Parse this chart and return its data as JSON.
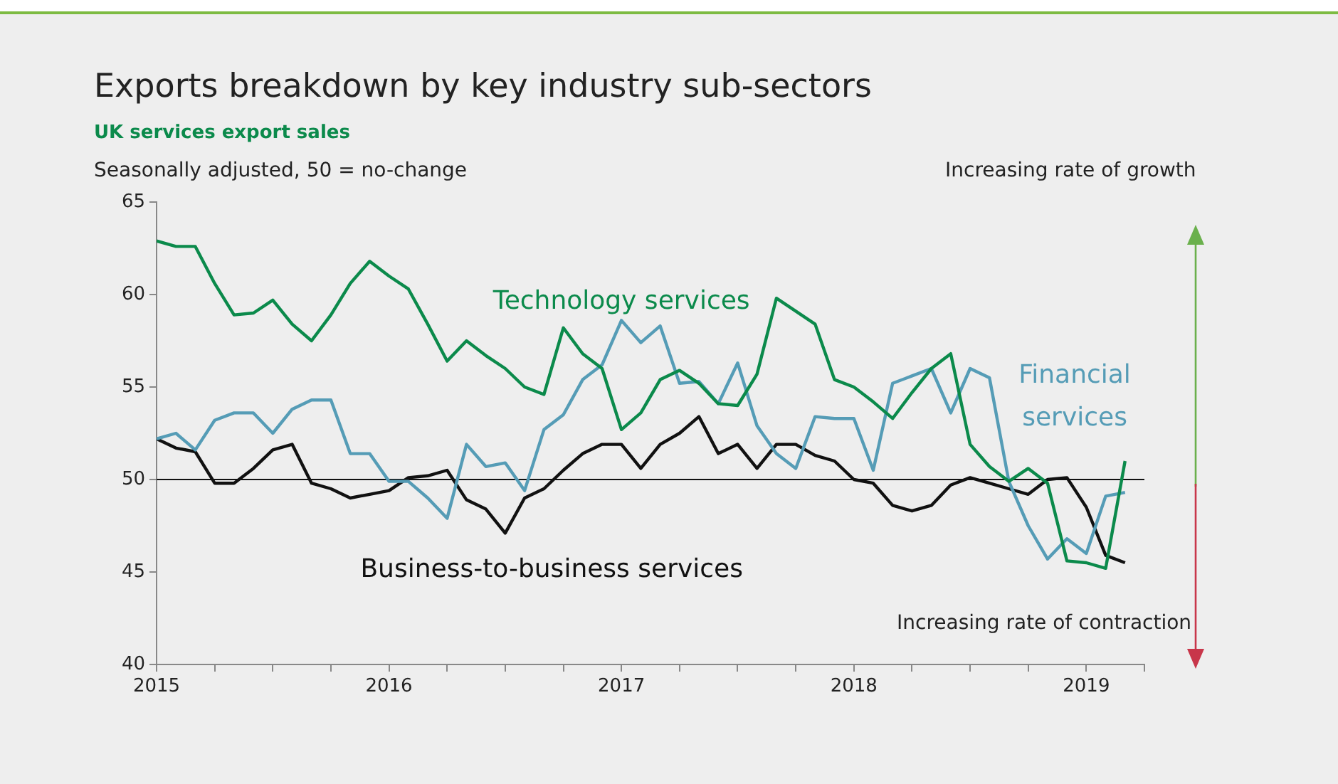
{
  "chart_data": {
    "type": "line",
    "title": "Exports breakdown by key industry sub-sectors",
    "subtitle": "UK services export sales",
    "ylabel": "Seasonally adjusted, 50 = no-change",
    "annotations": [
      "Increasing rate of growth",
      "Increasing rate of contraction"
    ],
    "x": [
      "2015-01",
      "2015-02",
      "2015-03",
      "2015-04",
      "2015-05",
      "2015-06",
      "2015-07",
      "2015-08",
      "2015-09",
      "2015-10",
      "2015-11",
      "2015-12",
      "2016-01",
      "2016-02",
      "2016-03",
      "2016-04",
      "2016-05",
      "2016-06",
      "2016-07",
      "2016-08",
      "2016-09",
      "2016-10",
      "2016-11",
      "2016-12",
      "2017-01",
      "2017-02",
      "2017-03",
      "2017-04",
      "2017-05",
      "2017-06",
      "2017-07",
      "2017-08",
      "2017-09",
      "2017-10",
      "2017-11",
      "2017-12",
      "2018-01",
      "2018-02",
      "2018-03",
      "2018-04",
      "2018-05",
      "2018-06",
      "2018-07",
      "2018-08",
      "2018-09",
      "2018-10",
      "2018-11",
      "2018-12",
      "2019-01",
      "2019-02",
      "2019-03"
    ],
    "series": [
      {
        "name": "Technology services",
        "color": "#0b8a4b",
        "values": [
          62.9,
          62.6,
          62.6,
          60.6,
          58.9,
          59.0,
          59.7,
          58.4,
          57.5,
          58.9,
          60.6,
          61.8,
          61.0,
          60.3,
          58.4,
          56.4,
          57.5,
          56.7,
          56.0,
          55.0,
          54.6,
          58.2,
          56.8,
          56.0,
          52.7,
          53.6,
          55.4,
          55.9,
          55.2,
          54.1,
          54.0,
          55.7,
          59.8,
          59.1,
          58.4,
          55.4,
          55.0,
          54.2,
          53.3,
          54.7,
          56.0,
          56.8,
          51.9,
          50.7,
          49.9,
          50.6,
          49.8,
          45.6,
          45.5,
          45.2,
          51.0
        ]
      },
      {
        "name": "Financial services",
        "color": "#559cb6",
        "values": [
          52.2,
          52.5,
          51.6,
          53.2,
          53.6,
          53.6,
          52.5,
          53.8,
          54.3,
          54.3,
          51.4,
          51.4,
          49.9,
          49.9,
          49.0,
          47.9,
          51.9,
          50.7,
          50.9,
          49.4,
          52.7,
          53.5,
          55.4,
          56.2,
          58.6,
          57.4,
          58.3,
          55.2,
          55.3,
          54.1,
          56.3,
          52.9,
          51.4,
          50.6,
          53.4,
          53.3,
          53.3,
          50.5,
          55.2,
          55.6,
          56.0,
          53.6,
          56.0,
          55.5,
          49.9,
          47.5,
          45.7,
          46.8,
          46.0,
          49.1,
          49.3
        ]
      },
      {
        "name": "Business-to-business services",
        "color": "#111111",
        "values": [
          52.2,
          51.7,
          51.5,
          49.8,
          49.8,
          50.6,
          51.6,
          51.9,
          49.8,
          49.5,
          49.0,
          49.2,
          49.4,
          50.1,
          50.2,
          50.5,
          48.9,
          48.4,
          47.1,
          49.0,
          49.5,
          50.5,
          51.4,
          51.9,
          51.9,
          50.6,
          51.9,
          52.5,
          53.4,
          51.4,
          51.9,
          50.6,
          51.9,
          51.9,
          51.3,
          51.0,
          50.0,
          49.8,
          48.6,
          48.3,
          48.6,
          49.7,
          50.1,
          49.8,
          49.5,
          49.2,
          50.0,
          50.1,
          48.5,
          45.9,
          45.5
        ]
      }
    ],
    "xlim": [
      "2015-01",
      "2019-04"
    ],
    "xticks": [
      {
        "value": "2015-01",
        "label": "2015"
      },
      {
        "value": "2015-04",
        "label": null
      },
      {
        "value": "2015-07",
        "label": null
      },
      {
        "value": "2015-10",
        "label": null
      },
      {
        "value": "2016-01",
        "label": "2016"
      },
      {
        "value": "2016-04",
        "label": null
      },
      {
        "value": "2016-07",
        "label": null
      },
      {
        "value": "2016-10",
        "label": null
      },
      {
        "value": "2017-01",
        "label": "2017"
      },
      {
        "value": "2017-04",
        "label": null
      },
      {
        "value": "2017-07",
        "label": null
      },
      {
        "value": "2017-10",
        "label": null
      },
      {
        "value": "2018-01",
        "label": "2018"
      },
      {
        "value": "2018-04",
        "label": null
      },
      {
        "value": "2018-07",
        "label": null
      },
      {
        "value": "2018-10",
        "label": null
      },
      {
        "value": "2019-01",
        "label": "2019"
      },
      {
        "value": "2019-04",
        "label": null
      }
    ],
    "ylim": [
      40,
      65
    ],
    "yticks": [
      40,
      45,
      50,
      55,
      60,
      65
    ],
    "ref_lines": [
      {
        "axis": "y",
        "value": 50,
        "color": "#111111"
      }
    ],
    "marker": "none",
    "line_style": "solid"
  }
}
